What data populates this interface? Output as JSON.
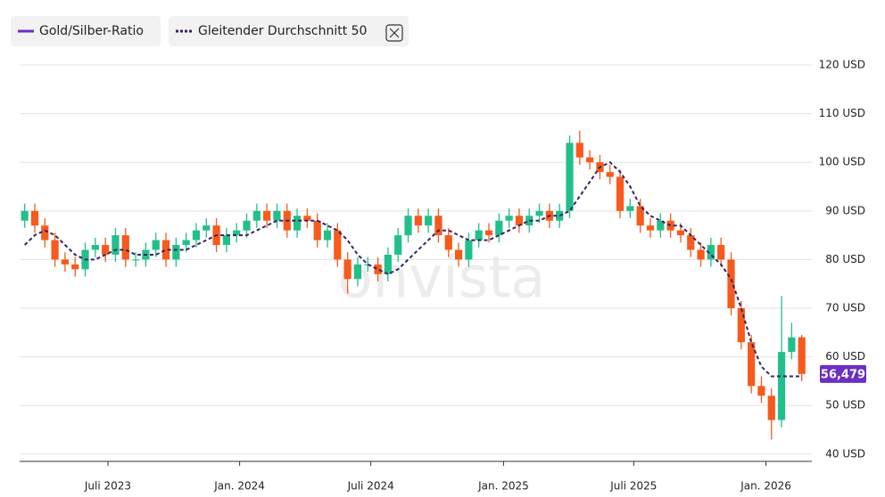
{
  "chart_data": {
    "type": "candlestick",
    "name": "Gold/Silber-Ratio",
    "color": "#6b2fc2",
    "up_color": "#22bf8c",
    "down_color": "#f65a1c",
    "watermark": "onvista",
    "x": [
      1,
      3,
      5,
      7,
      9,
      11,
      13,
      15,
      17,
      19,
      21,
      23,
      25,
      27,
      29,
      31,
      33,
      35,
      37,
      39,
      41,
      43,
      45,
      47,
      49,
      51,
      53,
      55,
      57,
      59,
      61,
      63,
      65,
      67,
      69,
      71,
      73,
      75,
      77,
      79,
      81,
      83,
      85,
      87,
      89,
      91,
      93,
      95,
      97,
      99,
      101,
      103,
      105,
      107,
      109,
      111,
      113,
      115,
      117,
      119,
      121,
      123,
      125,
      127,
      129,
      131,
      133,
      135,
      137,
      139,
      141,
      143,
      145,
      147,
      149,
      151,
      153,
      155
    ],
    "open": [
      88,
      90,
      87,
      84,
      80,
      79,
      78,
      82,
      83,
      81,
      85,
      80,
      80,
      82,
      84,
      80,
      83,
      84,
      86,
      87,
      83,
      85,
      86,
      88,
      90,
      88,
      90,
      86,
      89,
      88,
      84,
      86,
      80,
      76,
      79,
      79,
      77,
      81,
      85,
      89,
      87,
      89,
      85,
      82,
      80,
      84,
      86,
      85,
      88,
      89,
      87,
      89,
      90,
      88,
      90,
      104,
      101,
      100,
      98,
      97,
      90,
      91,
      87,
      86,
      88,
      86,
      85,
      82,
      80,
      83,
      80,
      70,
      63,
      54,
      52,
      47,
      61,
      64
    ],
    "high": [
      91.5,
      91.5,
      88.5,
      85.5,
      81.5,
      80.5,
      83.5,
      84.5,
      84.5,
      86.5,
      86.5,
      81.5,
      83.5,
      85.5,
      85.5,
      84.5,
      85.5,
      87.5,
      88.5,
      88.5,
      86.5,
      87.5,
      89.5,
      91.5,
      91.5,
      91.5,
      91.5,
      90.5,
      90.5,
      89.5,
      87.5,
      87.5,
      81.5,
      80.5,
      80.5,
      80.5,
      82.5,
      86.5,
      90.5,
      90.5,
      90.5,
      90.5,
      86.5,
      83.5,
      85.5,
      87.5,
      87.5,
      89.5,
      90.5,
      90.5,
      90.5,
      91.5,
      91.5,
      91.5,
      105.5,
      106.5,
      102.5,
      101.5,
      99.5,
      98.5,
      92.5,
      92.5,
      88.5,
      89.5,
      89.5,
      87.5,
      86.5,
      83.5,
      84.5,
      84.5,
      81.5,
      71.5,
      64.5,
      56,
      53.5,
      72.5,
      67,
      64.5
    ],
    "low": [
      86.5,
      85.5,
      82.5,
      78.5,
      77.5,
      76.5,
      76.5,
      80.5,
      79.5,
      79.5,
      78.5,
      78.5,
      78.5,
      80.5,
      78.5,
      78.5,
      81.5,
      82.5,
      84.5,
      81.5,
      81.5,
      83.5,
      84.5,
      86.5,
      86.5,
      86.5,
      84.5,
      84.5,
      86.5,
      82.5,
      82.5,
      78.5,
      73,
      74.5,
      77.5,
      75.5,
      75.5,
      79.5,
      83.5,
      85.5,
      85.5,
      83.5,
      80.5,
      78.5,
      78.5,
      82.5,
      83.5,
      83.5,
      86.5,
      85.5,
      85.5,
      87.5,
      86.5,
      86.5,
      88.5,
      99.5,
      98.5,
      96.5,
      95.5,
      88.5,
      88.5,
      85.5,
      84.5,
      84.5,
      84.5,
      83.5,
      80.5,
      78.5,
      78.5,
      78.5,
      68.5,
      61.5,
      52.5,
      50.5,
      43,
      45.5,
      59.5,
      55
    ],
    "close": [
      90,
      87,
      84,
      80,
      79,
      78,
      82,
      83,
      81,
      85,
      80,
      80,
      82,
      84,
      80,
      83,
      84,
      86,
      87,
      83,
      85,
      86,
      88,
      90,
      88,
      90,
      86,
      89,
      88,
      84,
      86,
      80,
      76,
      79,
      79,
      77,
      81,
      85,
      89,
      87,
      89,
      85,
      82,
      80,
      84,
      86,
      85,
      88,
      89,
      87,
      89,
      90,
      88,
      90,
      104,
      101,
      100,
      98,
      97,
      90,
      91,
      87,
      86,
      88,
      86,
      85,
      82,
      80,
      83,
      80,
      70,
      63,
      54,
      52,
      47,
      61,
      64,
      56.479
    ],
    "last_value_label": "56,479",
    "overlay": {
      "name": "Gleitender Durchschnitt 50",
      "color": "#3b2163",
      "values": [
        83,
        85,
        86,
        85,
        83,
        81,
        80,
        80,
        81,
        82,
        82,
        81,
        81,
        81,
        82,
        82,
        82,
        83,
        84,
        85,
        85,
        85,
        85,
        86,
        87,
        88,
        88,
        88,
        88,
        88,
        87,
        86,
        84,
        81,
        79,
        78,
        77,
        78,
        80,
        82,
        84,
        86,
        86,
        85,
        84,
        84,
        84,
        85,
        86,
        87,
        88,
        88,
        89,
        89,
        90,
        93,
        96,
        99,
        100,
        98,
        95,
        91,
        89,
        88,
        87,
        87,
        85,
        83,
        81,
        79,
        76,
        70,
        63,
        58,
        56,
        56,
        56,
        56
      ]
    },
    "xlim": [
      0,
      157
    ],
    "xticks": [
      {
        "value": 17.5,
        "label": "Juli 2023"
      },
      {
        "value": 43.6,
        "label": "Jan. 2024"
      },
      {
        "value": 69.6,
        "label": "Juli 2024"
      },
      {
        "value": 95.9,
        "label": "Jan. 2025"
      },
      {
        "value": 121.7,
        "label": "Juli 2025"
      },
      {
        "value": 147.9,
        "label": "Jan. 2026"
      }
    ],
    "ylim": [
      38.5,
      123.3
    ],
    "yticks": [
      {
        "value": 40,
        "label": "40 USD"
      },
      {
        "value": 50,
        "label": "50 USD"
      },
      {
        "value": 60,
        "label": "60 USD"
      },
      {
        "value": 70,
        "label": "70 USD"
      },
      {
        "value": 80,
        "label": "80 USD"
      },
      {
        "value": 90,
        "label": "90 USD"
      },
      {
        "value": 100,
        "label": "100 USD"
      },
      {
        "value": 110,
        "label": "110 USD"
      },
      {
        "value": 120,
        "label": "120 USD"
      }
    ],
    "grid": true
  }
}
